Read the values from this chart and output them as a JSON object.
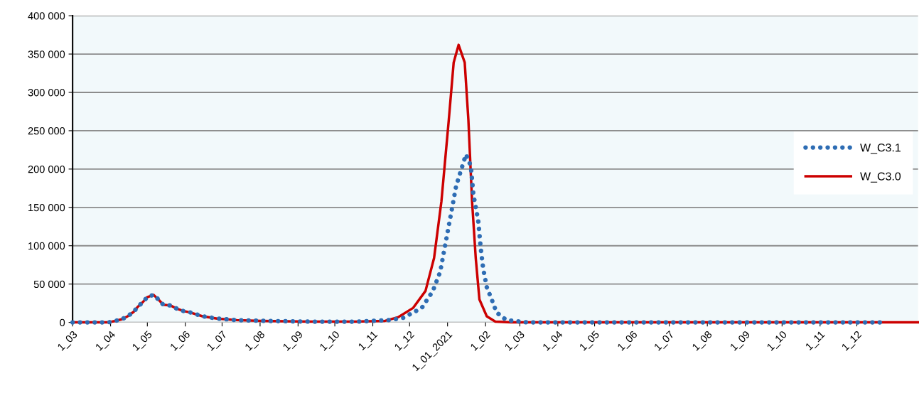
{
  "chart_data": {
    "type": "line",
    "series": [
      {
        "name": "W_C3.1",
        "color": "#2e6db4",
        "line_style": "dotted",
        "x": [
          "2020-03-01",
          "2020-03-30",
          "2020-04-05",
          "2020-04-10",
          "2020-04-15",
          "2020-04-20",
          "2020-04-23",
          "2020-04-27",
          "2020-05-01",
          "2020-05-06",
          "2020-05-10",
          "2020-05-14",
          "2020-05-20",
          "2020-05-25",
          "2020-05-30",
          "2020-06-05",
          "2020-06-15",
          "2020-06-27",
          "2020-07-13",
          "2020-08-02",
          "2020-09-10",
          "2020-10-19",
          "2020-11-15",
          "2020-11-26",
          "2020-12-11",
          "2020-12-20",
          "2020-12-26",
          "2020-12-31",
          "2021-01-04",
          "2021-01-08",
          "2021-01-16",
          "2021-01-20",
          "2021-01-22",
          "2021-01-26",
          "2021-01-28",
          "2021-01-30",
          "2021-02-02",
          "2021-02-06",
          "2021-02-10",
          "2021-02-18",
          "2021-03-07",
          "2021-12-22"
        ],
        "values": [
          0,
          0,
          2000,
          4000,
          8000,
          14000,
          20000,
          26000,
          33000,
          36000,
          30000,
          23000,
          22000,
          18000,
          15000,
          13000,
          8000,
          5000,
          3000,
          2000,
          1000,
          1000,
          3000,
          6000,
          19000,
          41000,
          66000,
          109000,
          143000,
          178000,
          219000,
          204000,
          168000,
          133000,
          98000,
          71000,
          46000,
          30000,
          13000,
          3000,
          0,
          0
        ]
      },
      {
        "name": "W_C3.0",
        "color": "#cc0000",
        "line_style": "solid",
        "x": [
          "2020-03-01",
          "2020-03-30",
          "2020-04-05",
          "2020-04-10",
          "2020-04-15",
          "2020-04-20",
          "2020-04-23",
          "2020-04-27",
          "2020-05-01",
          "2020-05-06",
          "2020-05-10",
          "2020-05-14",
          "2020-05-20",
          "2020-05-25",
          "2020-05-30",
          "2020-06-05",
          "2020-06-15",
          "2020-06-27",
          "2020-07-13",
          "2020-08-02",
          "2020-09-10",
          "2020-10-19",
          "2020-11-11",
          "2020-11-22",
          "2020-12-04",
          "2020-12-14",
          "2020-12-21",
          "2020-12-27",
          "2021-01-02",
          "2021-01-06",
          "2021-01-10",
          "2021-01-15",
          "2021-01-18",
          "2021-01-21",
          "2021-01-24",
          "2021-01-27",
          "2021-02-02",
          "2021-02-09",
          "2021-02-22",
          "2022-01-20"
        ],
        "values": [
          0,
          0,
          2000,
          4000,
          8000,
          14000,
          20000,
          26000,
          33000,
          36000,
          30000,
          23000,
          22000,
          18000,
          15000,
          13000,
          8000,
          5000,
          3000,
          2000,
          1000,
          1000,
          2000,
          7000,
          19000,
          41000,
          84000,
          158000,
          264000,
          339000,
          362000,
          339000,
          264000,
          158000,
          84000,
          30000,
          8000,
          1000,
          0,
          0
        ]
      }
    ],
    "xlim": [
      "2020-03-01",
      "2022-01-20"
    ],
    "xticks": [
      {
        "value": "2020-03-01",
        "label": "1_03"
      },
      {
        "value": "2020-04-01",
        "label": "1_04"
      },
      {
        "value": "2020-05-01",
        "label": "1_05"
      },
      {
        "value": "2020-06-01",
        "label": "1_06"
      },
      {
        "value": "2020-07-01",
        "label": "1_07"
      },
      {
        "value": "2020-08-01",
        "label": "1_08"
      },
      {
        "value": "2020-09-01",
        "label": "1_09"
      },
      {
        "value": "2020-10-01",
        "label": "1_10"
      },
      {
        "value": "2020-11-01",
        "label": "1_11"
      },
      {
        "value": "2020-12-01",
        "label": "1_12"
      },
      {
        "value": "2021-01-01",
        "label": "1_01_2021"
      },
      {
        "value": "2021-02-01",
        "label": "1_02"
      },
      {
        "value": "2021-03-01",
        "label": "1_03"
      },
      {
        "value": "2021-04-01",
        "label": "1_04"
      },
      {
        "value": "2021-05-01",
        "label": "1_05"
      },
      {
        "value": "2021-06-01",
        "label": "1_06"
      },
      {
        "value": "2021-07-01",
        "label": "1_07"
      },
      {
        "value": "2021-08-01",
        "label": "1_08"
      },
      {
        "value": "2021-09-01",
        "label": "1_09"
      },
      {
        "value": "2021-10-01",
        "label": "1_10"
      },
      {
        "value": "2021-11-01",
        "label": "1_11"
      },
      {
        "value": "2021-12-01",
        "label": "1_12"
      }
    ],
    "ylim": [
      0,
      400000
    ],
    "yticks": [
      0,
      {
        "value": 50000,
        "label": "50 000"
      },
      {
        "value": 100000,
        "label": "100 000"
      },
      {
        "value": 150000,
        "label": "150 000"
      },
      {
        "value": 200000,
        "label": "200 000"
      },
      {
        "value": 250000,
        "label": "250 000"
      },
      {
        "value": 300000,
        "label": "300 000"
      },
      {
        "value": 350000,
        "label": "350 000"
      },
      {
        "value": 400000,
        "label": "400 000"
      }
    ],
    "grid": "y",
    "legend": "right",
    "marker": "none"
  }
}
